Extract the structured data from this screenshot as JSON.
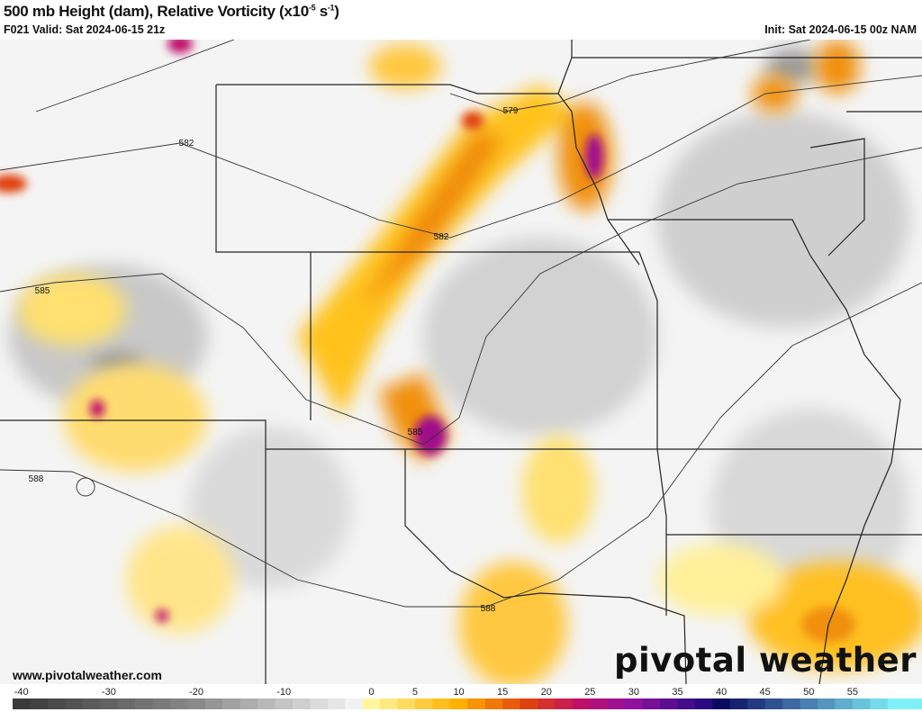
{
  "header": {
    "title": "500 mb Height (dam), Relative Vorticity (x10",
    "title_exp1": "-5",
    "title_mid": " s",
    "title_exp2": "-1",
    "title_end": ")",
    "valid": "F021 Valid: Sat 2024-06-15 21z",
    "init": "Init: Sat 2024-06-15 00z NAM"
  },
  "map": {
    "contour_labels": [
      "579",
      "582",
      "582",
      "585",
      "585",
      "588",
      "588"
    ],
    "colors": {
      "border": "#222222",
      "county": "#bbbbbb",
      "contour": "#333333"
    }
  },
  "footer": {
    "url": "www.pivotalweather.com",
    "logo": "pivotal weather"
  },
  "colorbar": {
    "ticks": [
      -40,
      -30,
      -20,
      -10,
      0,
      5,
      10,
      15,
      20,
      25,
      30,
      35,
      40,
      45,
      50,
      55
    ],
    "range": [
      -41,
      61.5
    ],
    "stops": [
      {
        "v": -40,
        "c": "#3a3a3a"
      },
      {
        "v": -20,
        "c": "#8a8a8a"
      },
      {
        "v": -2,
        "c": "#f2f2f2"
      },
      {
        "v": 0,
        "c": "#fff7a0"
      },
      {
        "v": 10,
        "c": "#ffb000"
      },
      {
        "v": 18,
        "c": "#e04010"
      },
      {
        "v": 24,
        "c": "#c0106a"
      },
      {
        "v": 30,
        "c": "#9010a0"
      },
      {
        "v": 38,
        "c": "#2a0a80"
      },
      {
        "v": 40,
        "c": "#0a0a60"
      },
      {
        "v": 50,
        "c": "#4a80b0"
      },
      {
        "v": 60,
        "c": "#80f0f8"
      }
    ]
  }
}
